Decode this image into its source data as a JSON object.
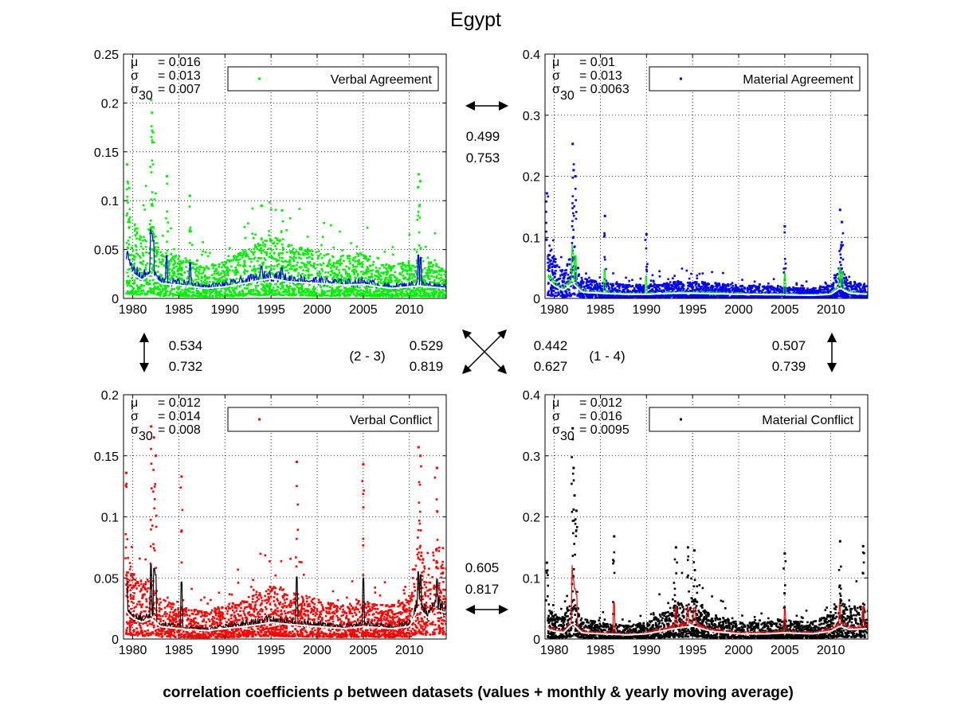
{
  "title": "Egypt",
  "caption": "correlation coefficients ρ between datasets (values + monthly & yearly moving average)",
  "colors": {
    "verbal_agreement": "#00ee00",
    "material_agreement": "#0000ee",
    "verbal_conflict": "#ff0000",
    "material_conflict": "#000000",
    "moving_avg": "#ffffff"
  },
  "chart_data": [
    {
      "type": "scatter",
      "legend": "Verbal Agreement",
      "legend_placement": "top-right",
      "grid": true,
      "xlim": [
        1979,
        2014
      ],
      "ylim": [
        0,
        0.25
      ],
      "xticks": [
        1980,
        1985,
        1990,
        1995,
        2000,
        2005,
        2010
      ],
      "yticks": [
        0,
        0.05,
        0.1,
        0.15,
        0.2,
        0.25
      ],
      "ytick_labels": [
        "0",
        "0.05",
        "0.1",
        "0.15",
        "0.2",
        "0.25"
      ],
      "stats": {
        "mu": "= 0.016",
        "sigma": "= 0.013",
        "sigma30": "= 0.007"
      },
      "baseline": [
        [
          1979,
          0.035
        ],
        [
          1980,
          0.03
        ],
        [
          1981,
          0.022
        ],
        [
          1982,
          0.03
        ],
        [
          1983,
          0.018
        ],
        [
          1985,
          0.016
        ],
        [
          1988,
          0.012
        ],
        [
          1990,
          0.014
        ],
        [
          1993,
          0.02
        ],
        [
          1995,
          0.024
        ],
        [
          1997,
          0.02
        ],
        [
          2000,
          0.018
        ],
        [
          2003,
          0.016
        ],
        [
          2005,
          0.017
        ],
        [
          2008,
          0.012
        ],
        [
          2010,
          0.014
        ],
        [
          2011,
          0.015
        ],
        [
          2012,
          0.014
        ],
        [
          2014,
          0.012
        ]
      ],
      "peaks": [
        [
          1979.4,
          0.137
        ],
        [
          1979.6,
          0.113
        ],
        [
          1982.0,
          0.203
        ],
        [
          1982.1,
          0.19
        ],
        [
          1982.2,
          0.17
        ],
        [
          1983.7,
          0.125
        ],
        [
          1986.2,
          0.105
        ],
        [
          1994.0,
          0.095
        ],
        [
          1996.2,
          0.09
        ],
        [
          2011.0,
          0.127
        ],
        [
          2011.2,
          0.12
        ]
      ]
    },
    {
      "type": "scatter",
      "legend": "Material Agreement",
      "legend_placement": "top-right",
      "grid": true,
      "xlim": [
        1979,
        2014
      ],
      "ylim": [
        0,
        0.4
      ],
      "xticks": [
        1980,
        1985,
        1990,
        1995,
        2000,
        2005,
        2010
      ],
      "yticks": [
        0,
        0.1,
        0.2,
        0.3,
        0.4
      ],
      "ytick_labels": [
        "0",
        "0.1",
        "0.2",
        "0.3",
        "0.4"
      ],
      "stats": {
        "mu": "= 0.01",
        "sigma": "= 0.013",
        "sigma30": "= 0.0063"
      },
      "baseline": [
        [
          1979,
          0.04
        ],
        [
          1980,
          0.025
        ],
        [
          1981,
          0.015
        ],
        [
          1982,
          0.03
        ],
        [
          1983,
          0.012
        ],
        [
          1985,
          0.01
        ],
        [
          1988,
          0.008
        ],
        [
          1990,
          0.008
        ],
        [
          1993,
          0.01
        ],
        [
          1995,
          0.01
        ],
        [
          2000,
          0.008
        ],
        [
          2005,
          0.007
        ],
        [
          2008,
          0.006
        ],
        [
          2010,
          0.008
        ],
        [
          2011,
          0.02
        ],
        [
          2012,
          0.01
        ],
        [
          2014,
          0.008
        ]
      ],
      "peaks": [
        [
          1979.2,
          0.172
        ],
        [
          1982.0,
          0.253
        ],
        [
          1982.1,
          0.21
        ],
        [
          1982.3,
          0.2
        ],
        [
          1985.5,
          0.135
        ],
        [
          1990.0,
          0.105
        ],
        [
          2005.0,
          0.118
        ],
        [
          2011.0,
          0.145
        ],
        [
          2011.2,
          0.125
        ]
      ]
    },
    {
      "type": "scatter",
      "legend": "Verbal Conflict",
      "legend_placement": "top-right",
      "grid": true,
      "xlim": [
        1979,
        2014
      ],
      "ylim": [
        0,
        0.2
      ],
      "xticks": [
        1980,
        1985,
        1990,
        1995,
        2000,
        2005,
        2010
      ],
      "yticks": [
        0,
        0.05,
        0.1,
        0.15,
        0.2
      ],
      "ytick_labels": [
        "0",
        "0.05",
        "0.1",
        "0.15",
        "0.2"
      ],
      "stats": {
        "mu": "= 0.012",
        "sigma": "= 0.014",
        "sigma30": "= 0.008"
      },
      "baseline": [
        [
          1979,
          0.03
        ],
        [
          1980,
          0.02
        ],
        [
          1981,
          0.016
        ],
        [
          1982,
          0.02
        ],
        [
          1983,
          0.012
        ],
        [
          1985,
          0.01
        ],
        [
          1988,
          0.008
        ],
        [
          1990,
          0.01
        ],
        [
          1993,
          0.013
        ],
        [
          1995,
          0.016
        ],
        [
          1997,
          0.014
        ],
        [
          2000,
          0.012
        ],
        [
          2003,
          0.01
        ],
        [
          2005,
          0.012
        ],
        [
          2008,
          0.01
        ],
        [
          2010,
          0.012
        ],
        [
          2011,
          0.03
        ],
        [
          2012,
          0.02
        ],
        [
          2013,
          0.028
        ],
        [
          2014,
          0.025
        ]
      ],
      "peaks": [
        [
          1979.3,
          0.136
        ],
        [
          1982.0,
          0.174
        ],
        [
          1982.3,
          0.165
        ],
        [
          1982.5,
          0.15
        ],
        [
          1985.3,
          0.133
        ],
        [
          1997.8,
          0.145
        ],
        [
          2005.0,
          0.143
        ],
        [
          2011.0,
          0.157
        ],
        [
          2011.2,
          0.15
        ],
        [
          2013.0,
          0.14
        ]
      ]
    },
    {
      "type": "scatter",
      "legend": "Material Conflict",
      "legend_placement": "top-right",
      "grid": true,
      "xlim": [
        1979,
        2014
      ],
      "ylim": [
        0,
        0.4
      ],
      "xticks": [
        1980,
        1985,
        1990,
        1995,
        2000,
        2005,
        2010
      ],
      "yticks": [
        0,
        0.1,
        0.2,
        0.3,
        0.4
      ],
      "ytick_labels": [
        "0",
        "0.1",
        "0.2",
        "0.3",
        "0.4"
      ],
      "stats": {
        "mu": "= 0.012",
        "sigma": "= 0.016",
        "sigma30": "= 0.0095"
      },
      "baseline": [
        [
          1979,
          0.02
        ],
        [
          1980,
          0.015
        ],
        [
          1981,
          0.012
        ],
        [
          1982,
          0.03
        ],
        [
          1983,
          0.012
        ],
        [
          1985,
          0.01
        ],
        [
          1988,
          0.008
        ],
        [
          1990,
          0.01
        ],
        [
          1993,
          0.02
        ],
        [
          1995,
          0.025
        ],
        [
          1997,
          0.015
        ],
        [
          2000,
          0.01
        ],
        [
          2003,
          0.01
        ],
        [
          2005,
          0.012
        ],
        [
          2008,
          0.01
        ],
        [
          2010,
          0.015
        ],
        [
          2011,
          0.025
        ],
        [
          2012,
          0.018
        ],
        [
          2014,
          0.02
        ]
      ],
      "peaks": [
        [
          1979.2,
          0.125
        ],
        [
          1982.0,
          0.345
        ],
        [
          1982.1,
          0.28
        ],
        [
          1982.2,
          0.235
        ],
        [
          1982.4,
          0.21
        ],
        [
          1986.5,
          0.168
        ],
        [
          1993.2,
          0.15
        ],
        [
          1994.5,
          0.15
        ],
        [
          1995.2,
          0.145
        ],
        [
          2005.0,
          0.14
        ],
        [
          2011.0,
          0.16
        ],
        [
          2013.5,
          0.152
        ]
      ]
    }
  ],
  "correlations": [
    {
      "id": "1-2",
      "values": [
        "0.499",
        "0.753"
      ]
    },
    {
      "id": "1-3",
      "values": [
        "0.534",
        "0.732"
      ]
    },
    {
      "id": "2-3",
      "label": "(2 - 3)",
      "values": [
        "0.529",
        "0.819"
      ]
    },
    {
      "id": "1-4",
      "label": "(1 - 4)",
      "values": [
        "0.442",
        "0.627"
      ]
    },
    {
      "id": "2-4",
      "values": [
        "0.507",
        "0.739"
      ]
    },
    {
      "id": "3-4",
      "values": [
        "0.605",
        "0.817"
      ]
    }
  ],
  "stat_symbols": {
    "mu": "μ",
    "sigma": "σ",
    "sigma30": "σ",
    "sub30": "30"
  }
}
